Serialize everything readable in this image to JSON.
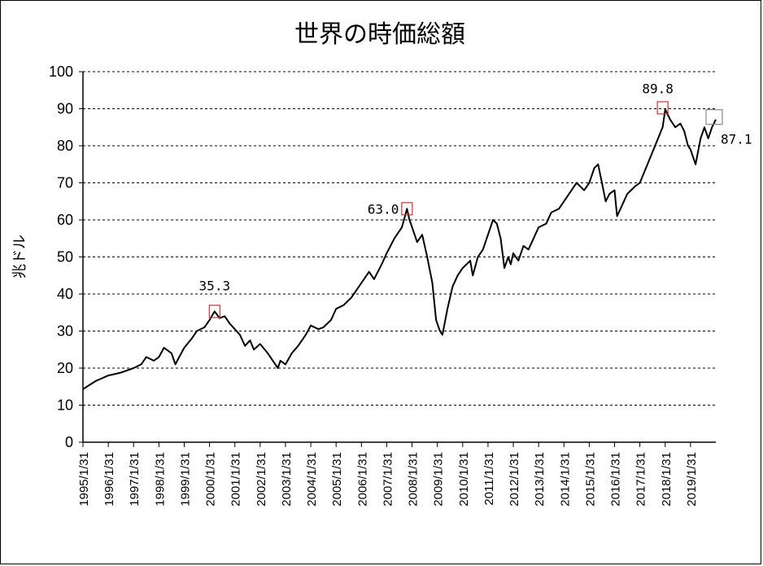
{
  "chart_data": {
    "type": "line",
    "title": "世界の時価総額",
    "ylabel": "兆ドル",
    "xlabel": "",
    "ylim": [
      0,
      100
    ],
    "y_ticks": [
      "0",
      "10",
      "20",
      "30",
      "40",
      "50",
      "60",
      "70",
      "80",
      "90",
      "100"
    ],
    "x_ticks": [
      "1995/1/31",
      "1996/1/31",
      "1997/1/31",
      "1998/1/31",
      "1999/1/31",
      "2000/1/31",
      "2001/1/31",
      "2002/1/31",
      "2003/1/31",
      "2004/1/31",
      "2005/1/31",
      "2006/1/31",
      "2007/1/31",
      "2008/1/31",
      "2009/1/31",
      "2010/1/31",
      "2011/1/31",
      "2012/1/31",
      "2013/1/31",
      "2014/1/31",
      "2015/1/31",
      "2016/1/31",
      "2017/1/31",
      "2018/1/31",
      "2019/1/31"
    ],
    "grid": "horizontal dashed",
    "series": [
      {
        "x": [
          1995.0,
          1995.5,
          1996.0,
          1996.5,
          1997.0,
          1997.3,
          1997.5,
          1997.8,
          1998.0,
          1998.2,
          1998.5,
          1998.65,
          1998.8,
          1999.0,
          1999.3,
          1999.5,
          1999.8,
          2000.0,
          2000.2,
          2000.4,
          2000.6,
          2000.8,
          2001.0,
          2001.2,
          2001.4,
          2001.6,
          2001.75,
          2002.0,
          2002.3,
          2002.5,
          2002.7,
          2002.8,
          2003.0,
          2003.25,
          2003.5,
          2003.8,
          2004.0,
          2004.3,
          2004.5,
          2004.8,
          2005.0,
          2005.3,
          2005.6,
          2006.0,
          2006.3,
          2006.5,
          2006.8,
          2007.0,
          2007.3,
          2007.6,
          2007.8,
          2007.9,
          2008.0,
          2008.2,
          2008.4,
          2008.6,
          2008.8,
          2008.95,
          2009.1,
          2009.2,
          2009.4,
          2009.6,
          2009.8,
          2010.0,
          2010.3,
          2010.4,
          2010.6,
          2010.8,
          2011.0,
          2011.2,
          2011.35,
          2011.5,
          2011.65,
          2011.8,
          2011.9,
          2012.0,
          2012.2,
          2012.4,
          2012.6,
          2012.8,
          2013.0,
          2013.3,
          2013.5,
          2013.8,
          2014.0,
          2014.3,
          2014.5,
          2014.8,
          2015.0,
          2015.2,
          2015.35,
          2015.5,
          2015.65,
          2015.8,
          2016.0,
          2016.1,
          2016.3,
          2016.5,
          2016.8,
          2017.0,
          2017.3,
          2017.6,
          2017.9,
          2018.0,
          2018.2,
          2018.4,
          2018.6,
          2018.75,
          2018.9,
          2019.0,
          2019.2,
          2019.4,
          2019.55,
          2019.7,
          2019.85,
          2020.0
        ],
        "values": [
          14.3,
          16.5,
          18.0,
          18.8,
          20.0,
          21.0,
          23.0,
          22.0,
          23.0,
          25.5,
          24.0,
          21.0,
          23.0,
          25.5,
          28.0,
          30.0,
          31.0,
          33.0,
          35.3,
          33.5,
          34.0,
          32.0,
          30.5,
          29.0,
          26.0,
          27.5,
          25.0,
          26.5,
          24.0,
          22.0,
          20.0,
          22.0,
          21.0,
          24.0,
          26.0,
          29.0,
          31.5,
          30.5,
          31.0,
          33.0,
          36.0,
          37.0,
          39.0,
          43.0,
          46.0,
          44.0,
          48.0,
          51.0,
          55.0,
          58.0,
          63.0,
          60.0,
          58.0,
          54.0,
          56.0,
          50.0,
          43.0,
          33.0,
          30.0,
          29.0,
          36.0,
          42.0,
          45.0,
          47.0,
          49.0,
          45.0,
          50.0,
          52.0,
          56.0,
          60.0,
          59.0,
          55.0,
          47.0,
          50.0,
          48.0,
          51.0,
          49.0,
          53.0,
          52.0,
          55.0,
          58.0,
          59.0,
          62.0,
          63.0,
          65.0,
          68.0,
          70.0,
          68.0,
          70.0,
          74.0,
          75.0,
          70.0,
          65.0,
          67.0,
          68.0,
          61.0,
          64.0,
          67.0,
          69.0,
          70.0,
          75.0,
          80.0,
          85.0,
          89.8,
          87.0,
          85.0,
          86.0,
          84.0,
          80.0,
          79.0,
          75.0,
          82.0,
          85.0,
          82.0,
          85.0,
          87.1
        ]
      }
    ],
    "annotations": [
      {
        "label": "35.3",
        "x": 2000.2,
        "y": 35.3,
        "box_color": "#cc3333"
      },
      {
        "label": "63.0",
        "x": 2007.8,
        "y": 63.0,
        "box_color": "#cc3333"
      },
      {
        "label": "89.8",
        "x": 2017.9,
        "y": 89.8,
        "box_color": "#cc3333"
      },
      {
        "label": "87.1",
        "x": 2020.0,
        "y": 87.1,
        "box_color": "#888888"
      }
    ],
    "colors": {
      "line": "#000000",
      "peak_box": "#cc3333",
      "last_box": "#888888"
    }
  }
}
